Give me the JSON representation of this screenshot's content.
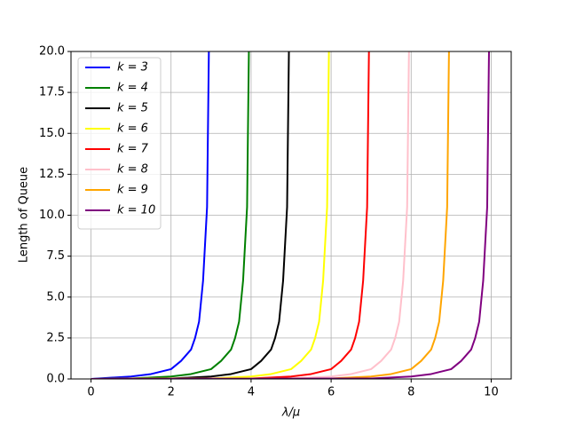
{
  "chart_data": {
    "type": "line",
    "xlabel": "λ/μ",
    "ylabel": "Length of Queue",
    "xlim": [
      -0.5,
      10.5
    ],
    "ylim": [
      0,
      20
    ],
    "xticks": [
      0,
      2,
      4,
      6,
      8,
      10
    ],
    "yticks": [
      {
        "value": 0,
        "label": "0.0"
      },
      2.5,
      {
        "value": 5,
        "label": "5.0"
      },
      7.5,
      {
        "value": 10,
        "label": "10.0"
      },
      12.5,
      {
        "value": 15,
        "label": "15.0"
      },
      17.5,
      {
        "value": 20,
        "label": "20.0"
      }
    ],
    "grid": true,
    "legend": "upper left",
    "series": [
      {
        "name": "k = 3",
        "color": "#0000ff",
        "x": [
          0,
          1,
          1.5,
          2,
          2.25,
          2.5,
          2.6,
          2.7,
          2.8,
          2.9,
          2.95
        ],
        "values": [
          0,
          0.15,
          0.3,
          0.6,
          1.1,
          1.8,
          2.5,
          3.5,
          6,
          10.5,
          21
        ]
      },
      {
        "name": "k = 4",
        "color": "#008000",
        "x": [
          0,
          1,
          2,
          2.5,
          3,
          3.25,
          3.5,
          3.6,
          3.7,
          3.8,
          3.9,
          3.95
        ],
        "values": [
          0,
          0.03,
          0.15,
          0.3,
          0.6,
          1.1,
          1.8,
          2.5,
          3.5,
          6,
          10.5,
          21
        ]
      },
      {
        "name": "k = 5",
        "color": "#000000",
        "x": [
          0,
          2,
          3,
          3.5,
          4,
          4.25,
          4.5,
          4.6,
          4.7,
          4.8,
          4.9,
          4.95
        ],
        "values": [
          0,
          0.03,
          0.15,
          0.3,
          0.6,
          1.1,
          1.8,
          2.5,
          3.5,
          6,
          10.5,
          21
        ]
      },
      {
        "name": "k = 6",
        "color": "#ffff00",
        "x": [
          0,
          3,
          4,
          4.5,
          5,
          5.25,
          5.5,
          5.6,
          5.7,
          5.8,
          5.9,
          5.95
        ],
        "values": [
          0,
          0.03,
          0.15,
          0.3,
          0.6,
          1.1,
          1.8,
          2.5,
          3.5,
          6,
          10.5,
          21
        ]
      },
      {
        "name": "k = 7",
        "color": "#ff0000",
        "x": [
          0,
          4,
          5,
          5.5,
          6,
          6.25,
          6.5,
          6.6,
          6.7,
          6.8,
          6.9,
          6.95
        ],
        "values": [
          0,
          0.03,
          0.15,
          0.3,
          0.6,
          1.1,
          1.8,
          2.5,
          3.5,
          6,
          10.5,
          21
        ]
      },
      {
        "name": "k = 8",
        "color": "#ffc0cb",
        "x": [
          0,
          5,
          6,
          6.5,
          7,
          7.25,
          7.5,
          7.6,
          7.7,
          7.8,
          7.9,
          7.95
        ],
        "values": [
          0,
          0.03,
          0.15,
          0.3,
          0.6,
          1.1,
          1.8,
          2.5,
          3.5,
          6,
          10.5,
          21
        ]
      },
      {
        "name": "k = 9",
        "color": "#ffa500",
        "x": [
          0,
          6,
          7,
          7.5,
          8,
          8.25,
          8.5,
          8.6,
          8.7,
          8.8,
          8.9,
          8.95
        ],
        "values": [
          0,
          0.03,
          0.15,
          0.3,
          0.6,
          1.1,
          1.8,
          2.5,
          3.5,
          6,
          10.5,
          21
        ]
      },
      {
        "name": "k = 10",
        "color": "#800080",
        "x": [
          0,
          7,
          8,
          8.5,
          9,
          9.25,
          9.5,
          9.6,
          9.7,
          9.8,
          9.9,
          9.95
        ],
        "values": [
          0,
          0.03,
          0.15,
          0.3,
          0.6,
          1.1,
          1.8,
          2.5,
          3.5,
          6,
          10.5,
          21
        ]
      }
    ]
  }
}
